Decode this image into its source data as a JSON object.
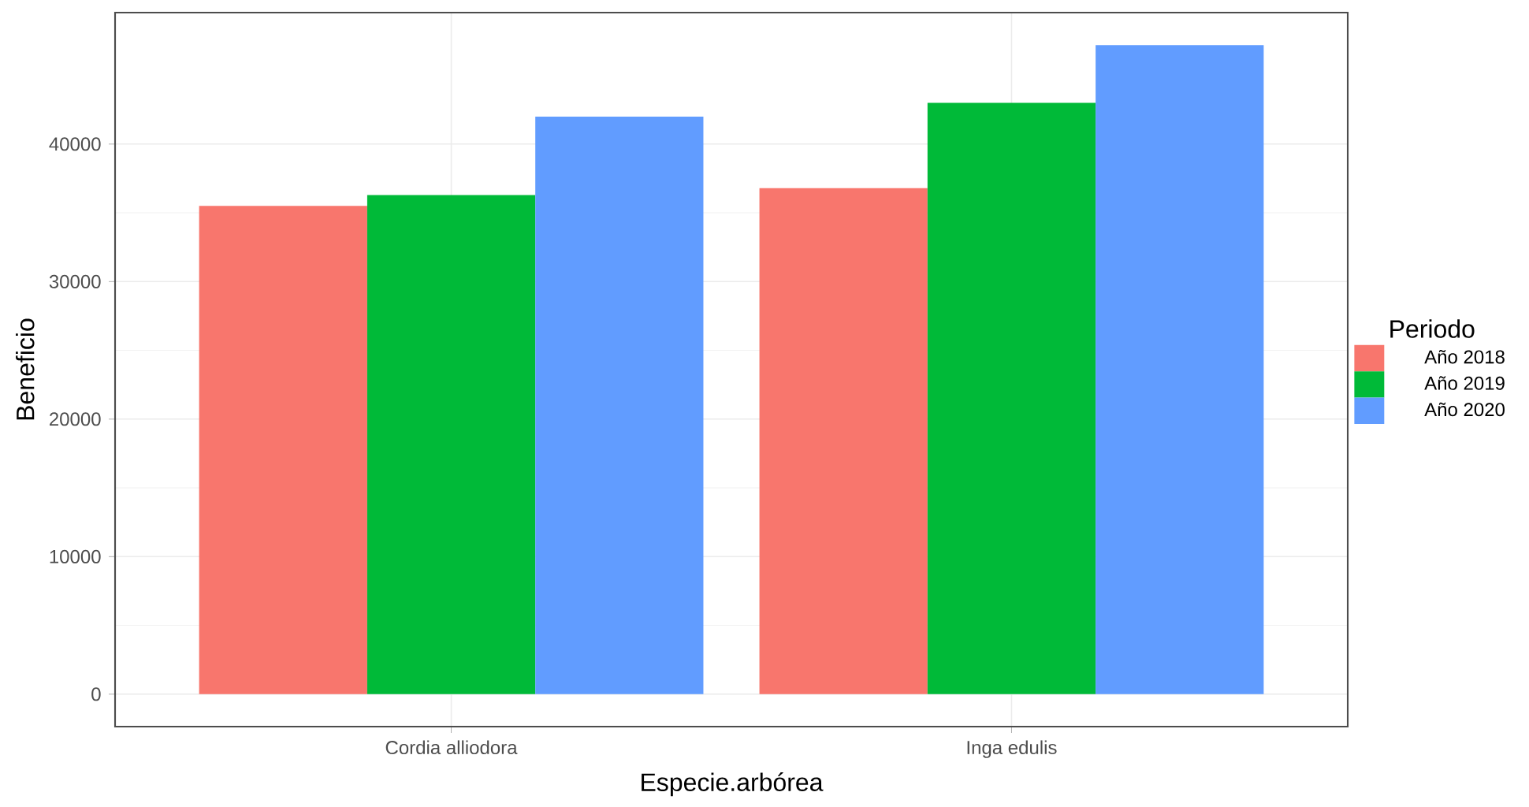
{
  "chart_data": {
    "type": "bar",
    "xlabel": "Especie.arbórea",
    "ylabel": "Beneficio",
    "legend_title": "Periodo",
    "categories": [
      "Cordia alliodora",
      "Inga edulis"
    ],
    "series": [
      {
        "name": "Año 2018",
        "color": "#f8766d",
        "values": [
          35500,
          36800
        ]
      },
      {
        "name": "Año 2019",
        "color": "#00ba38",
        "values": [
          36300,
          43000
        ]
      },
      {
        "name": "Año 2020",
        "color": "#619cff",
        "values": [
          42000,
          47200
        ]
      }
    ],
    "ylim": [
      -2360,
      49560
    ],
    "yticks": [
      0,
      10000,
      20000,
      30000,
      40000
    ],
    "grid": true,
    "legend": "right"
  }
}
